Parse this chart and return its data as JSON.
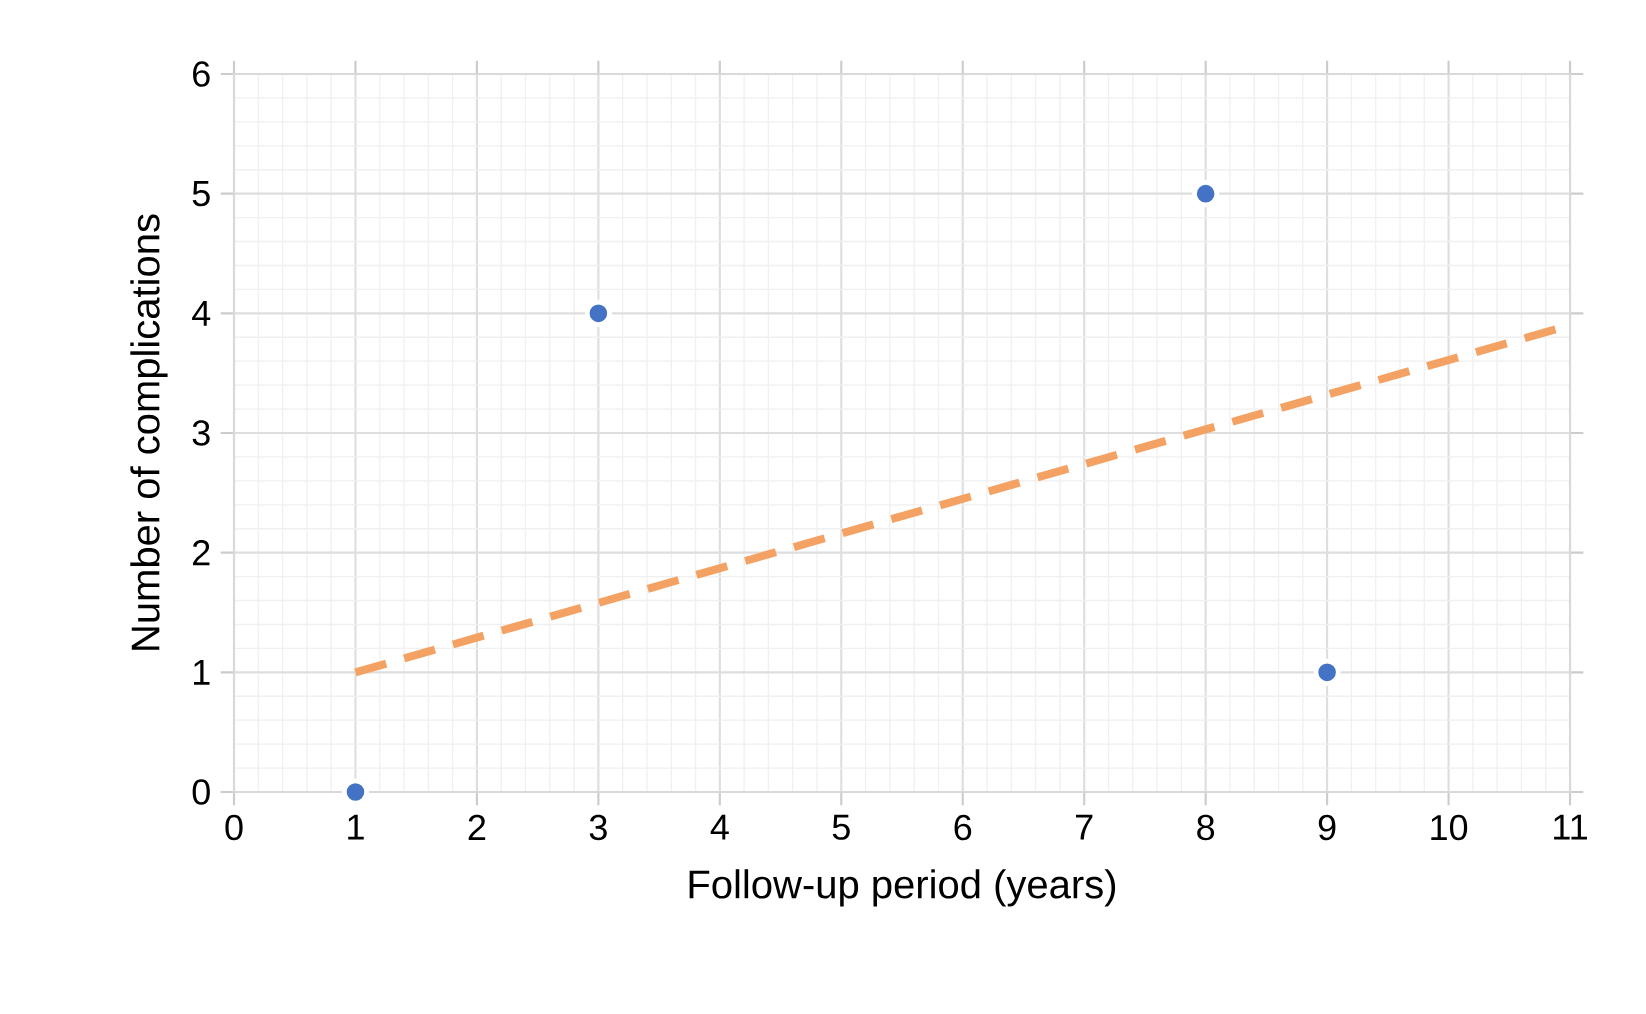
{
  "chart_data": {
    "type": "scatter",
    "xlabel": "Follow-up period (years)",
    "ylabel": "Number of complications",
    "xlim": [
      0,
      11
    ],
    "ylim": [
      0,
      6
    ],
    "xticks": [
      0,
      1,
      2,
      3,
      4,
      5,
      6,
      7,
      8,
      9,
      10,
      11
    ],
    "yticks": [
      0,
      1,
      2,
      3,
      4,
      5,
      6
    ],
    "grid": true,
    "series": [
      {
        "color": "#4472c4",
        "marker": "circle",
        "x": [
          1,
          3,
          8,
          9
        ],
        "values": [
          0,
          4,
          5,
          1
        ]
      },
      {
        "type": "line",
        "color": "#f4a263",
        "marker": "none",
        "line_style": "dashed",
        "x": [
          1,
          11
        ],
        "values": [
          1.0,
          3.9
        ]
      }
    ]
  }
}
